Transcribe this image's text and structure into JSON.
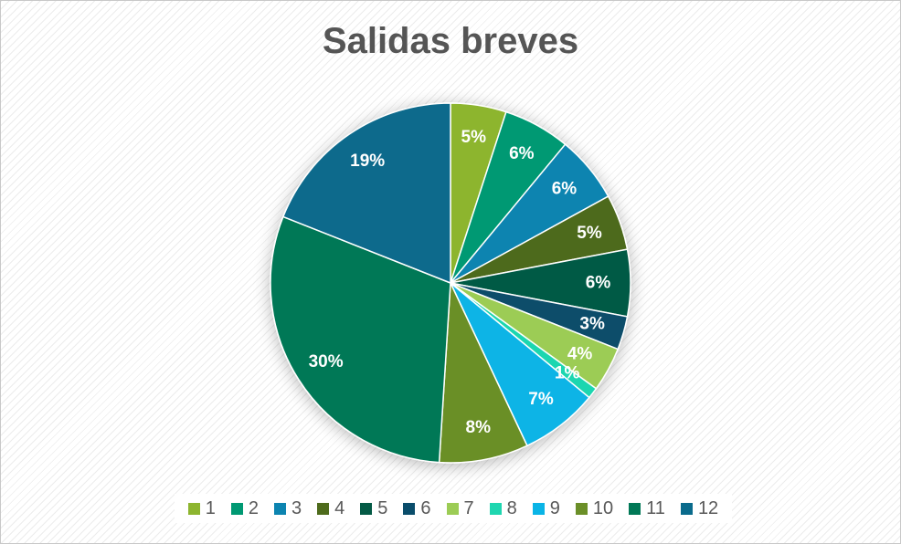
{
  "chart_data": {
    "type": "pie",
    "title": "Salidas breves",
    "categories": [
      "1",
      "2",
      "3",
      "4",
      "5",
      "6",
      "7",
      "8",
      "9",
      "10",
      "11",
      "12"
    ],
    "values": [
      5,
      6,
      6,
      5,
      6,
      3,
      4,
      1,
      7,
      8,
      30,
      19
    ],
    "labels": [
      "5%",
      "6%",
      "6%",
      "5%",
      "6%",
      "3%",
      "4%",
      "1%",
      "7%",
      "8%",
      "30%",
      "19%"
    ],
    "colors": [
      "#8db52f",
      "#009973",
      "#0c84b0",
      "#4e6b1c",
      "#045a45",
      "#0a4d6b",
      "#9ccc55",
      "#1fd6b0",
      "#0ab4e6",
      "#6b8f28",
      "#007856",
      "#0a6b8c"
    ],
    "legend_position": "bottom"
  }
}
